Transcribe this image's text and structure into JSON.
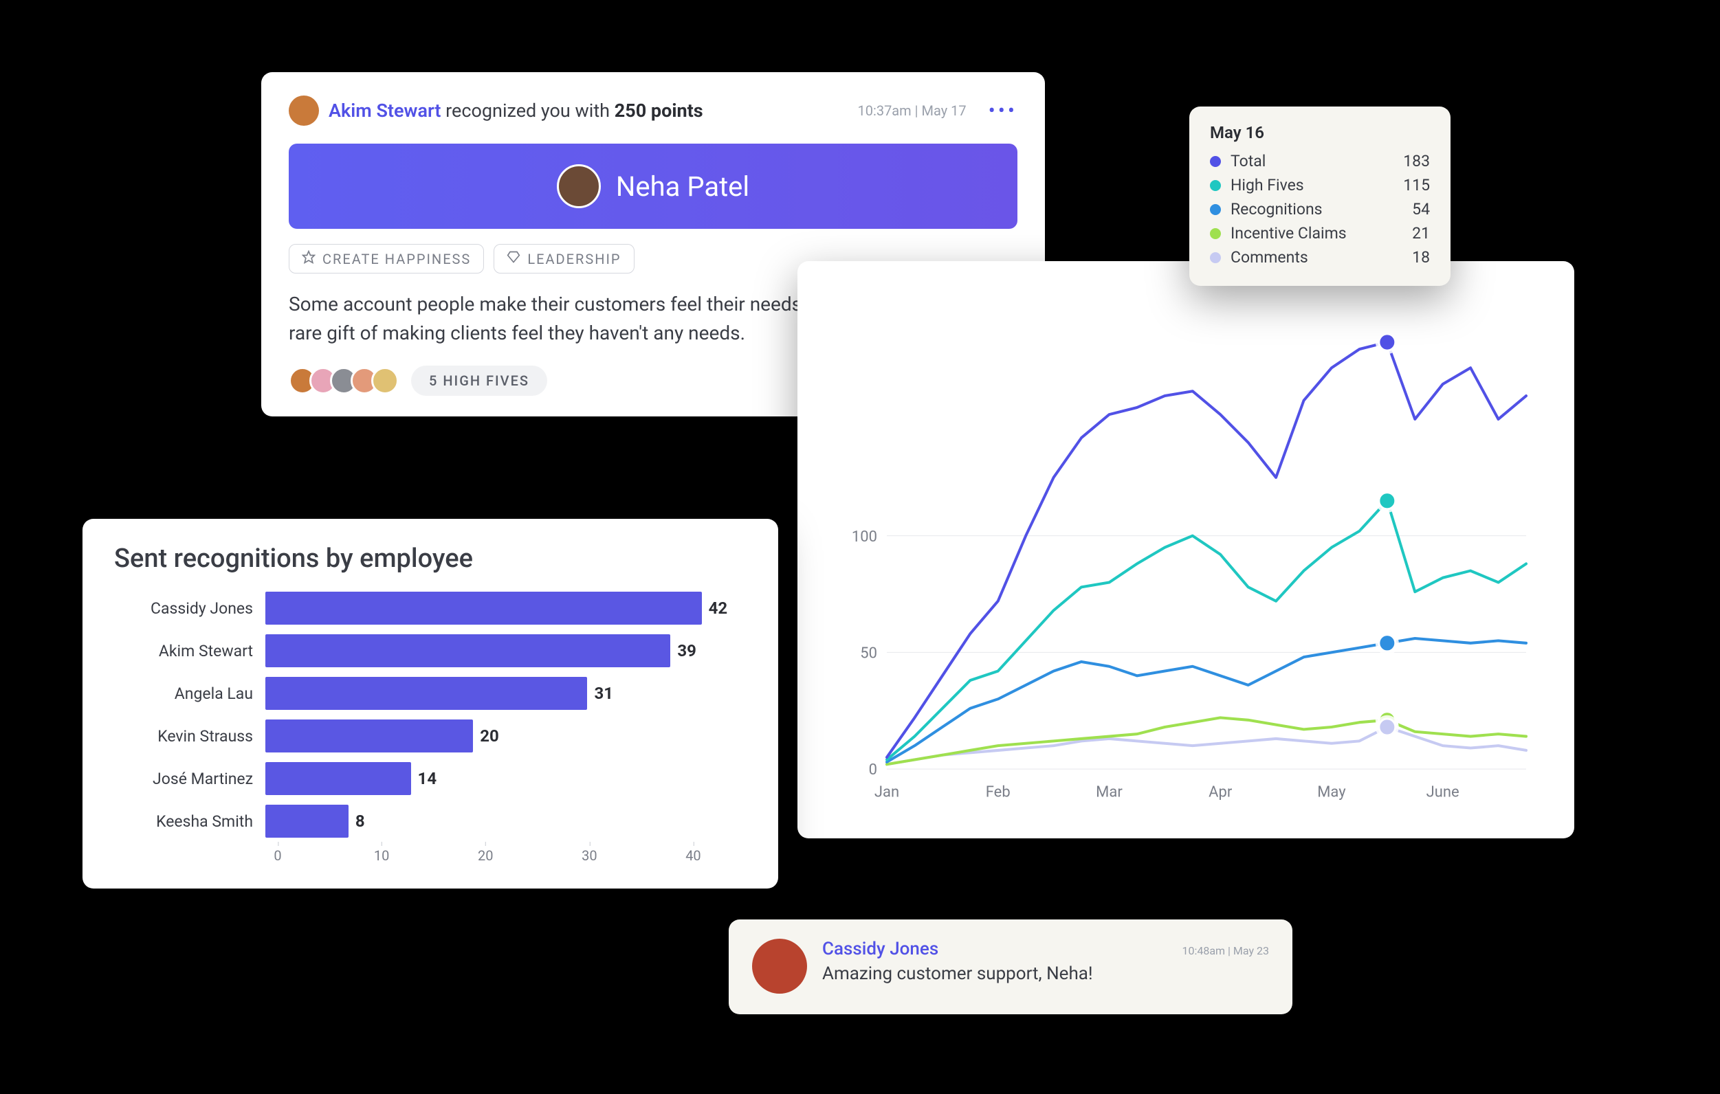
{
  "recognition": {
    "sender": "Akim Stewart",
    "action_prefix": " recognized you with ",
    "points_text": "250 points",
    "timestamp": "10:37am | May 17",
    "sender_avatar_bg": "#c97a3a",
    "recipient": {
      "name": "Neha Patel",
      "avatar_bg": "#6b4a36",
      "banner_gradient_from": "#5f5ff0",
      "banner_gradient_to": "#6a55e8"
    },
    "tags": [
      {
        "icon": "star",
        "label": "CREATE HAPPINESS"
      },
      {
        "icon": "diamond",
        "label": "LEADERSHIP"
      }
    ],
    "body": "Some account people make their customers feel their needs are met; you have the rare gift of making clients feel they haven't any needs.",
    "highfive": {
      "avatars": [
        "#c97a3a",
        "#e8a5b8",
        "#8a8d94",
        "#e39a7a",
        "#e0c173"
      ],
      "label": "5 HIGH FIVES"
    }
  },
  "legend": {
    "date": "May 16",
    "items": [
      {
        "label": "Total",
        "value": 183,
        "color": "#5151e6"
      },
      {
        "label": "High Fives",
        "value": 115,
        "color": "#1fc7c1"
      },
      {
        "label": "Recognitions",
        "value": 54,
        "color": "#2f8fe0"
      },
      {
        "label": "Incentive Claims",
        "value": 21,
        "color": "#9fe04f"
      },
      {
        "label": "Comments",
        "value": 18,
        "color": "#c6caf2"
      }
    ]
  },
  "line_chart": {
    "type": "line",
    "background_color": "#ffffff",
    "grid_color": "#e7e8ec",
    "ylim": [
      0,
      200
    ],
    "yticks": [
      0,
      50,
      100
    ],
    "x_categories": [
      "Jan",
      "Feb",
      "Mar",
      "Apr",
      "May",
      "June"
    ],
    "points_per_interval": 4,
    "highlight_index": 18,
    "line_width": 4,
    "marker_radius": 12,
    "marker_ring_color": "#ffffff",
    "series": [
      {
        "name": "Total",
        "color": "#5151e6",
        "values": [
          5,
          22,
          40,
          58,
          72,
          100,
          125,
          142,
          152,
          155,
          160,
          162,
          152,
          140,
          125,
          158,
          172,
          180,
          183,
          150,
          165,
          172,
          150,
          160
        ]
      },
      {
        "name": "High Fives",
        "color": "#1fc7c1",
        "values": [
          4,
          14,
          26,
          38,
          42,
          55,
          68,
          78,
          80,
          88,
          95,
          100,
          92,
          78,
          72,
          85,
          95,
          102,
          115,
          76,
          82,
          85,
          80,
          88
        ]
      },
      {
        "name": "Recognitions",
        "color": "#2f8fe0",
        "values": [
          3,
          10,
          18,
          26,
          30,
          36,
          42,
          46,
          44,
          40,
          42,
          44,
          40,
          36,
          42,
          48,
          50,
          52,
          54,
          56,
          55,
          54,
          55,
          54
        ]
      },
      {
        "name": "Incentive Claims",
        "color": "#9fe04f",
        "values": [
          2,
          4,
          6,
          8,
          10,
          11,
          12,
          13,
          14,
          15,
          18,
          20,
          22,
          21,
          19,
          17,
          18,
          20,
          21,
          16,
          15,
          14,
          15,
          14
        ]
      },
      {
        "name": "Comments",
        "color": "#c6caf2",
        "values": [
          2,
          4,
          6,
          7,
          8,
          9,
          10,
          12,
          13,
          12,
          11,
          10,
          11,
          12,
          13,
          12,
          11,
          12,
          18,
          14,
          10,
          9,
          10,
          8
        ]
      }
    ]
  },
  "bar_chart": {
    "type": "bar",
    "title": "Sent recognitions by employee",
    "bar_color": "#5a57e3",
    "label_fontsize": 23,
    "value_fontsize": 24,
    "xlim": [
      0,
      45
    ],
    "xticks": [
      0,
      10,
      20,
      30,
      40
    ],
    "grid_color": "#e7e8ec",
    "rows": [
      {
        "name": "Cassidy Jones",
        "value": 42
      },
      {
        "name": "Akim Stewart",
        "value": 39
      },
      {
        "name": "Angela Lau",
        "value": 31
      },
      {
        "name": "Kevin Strauss",
        "value": 20
      },
      {
        "name": "José Martinez",
        "value": 14
      },
      {
        "name": "Keesha Smith",
        "value": 8
      }
    ]
  },
  "comment": {
    "author": "Cassidy Jones",
    "avatar_bg": "#b8432e",
    "timestamp": "10:48am | May 23",
    "message": "Amazing customer support, Neha!"
  }
}
